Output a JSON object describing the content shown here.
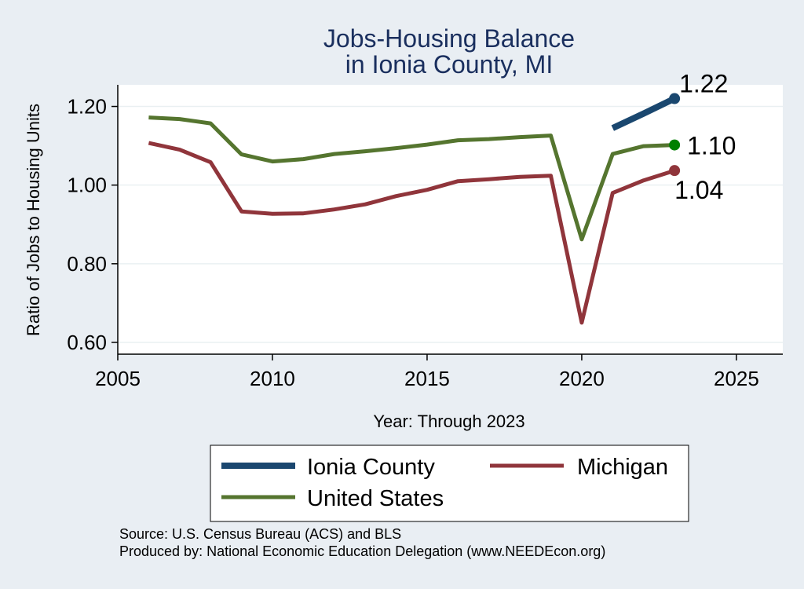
{
  "chart_data": {
    "type": "line",
    "title": "Jobs-Housing Balance",
    "subtitle": "in Ionia County, MI",
    "xlabel": "Year: Through 2023",
    "ylabel": "Ratio of Jobs to Housing Units",
    "xlim": [
      2005,
      2026.5
    ],
    "ylim": [
      0.57,
      1.255
    ],
    "x_ticks": [
      2005,
      2010,
      2015,
      2020,
      2025
    ],
    "y_ticks": [
      0.6,
      0.8,
      1.0,
      1.2
    ],
    "y_tick_labels": [
      "0.60",
      "0.80",
      "1.00",
      "1.20"
    ],
    "grid": true,
    "legend_position": "bottom",
    "series": [
      {
        "name": "Ionia County",
        "color": "#1a476f",
        "x": [
          2021,
          2022,
          2023
        ],
        "values": [
          1.145,
          1.182,
          1.22
        ],
        "end_label": "1.22"
      },
      {
        "name": "Michigan",
        "color": "#90353b",
        "x": [
          2006,
          2007,
          2008,
          2009,
          2010,
          2011,
          2012,
          2013,
          2014,
          2015,
          2016,
          2017,
          2018,
          2019,
          2020,
          2021,
          2022,
          2023
        ],
        "values": [
          1.107,
          1.09,
          1.058,
          0.933,
          0.927,
          0.928,
          0.938,
          0.951,
          0.972,
          0.988,
          1.01,
          1.015,
          1.021,
          1.024,
          0.65,
          0.98,
          1.012,
          1.037
        ],
        "end_label": "1.04"
      },
      {
        "name": "United States",
        "color": "#55752f",
        "x": [
          2006,
          2007,
          2008,
          2009,
          2010,
          2011,
          2012,
          2013,
          2014,
          2015,
          2016,
          2017,
          2018,
          2019,
          2020,
          2021,
          2022,
          2023
        ],
        "values": [
          1.172,
          1.168,
          1.157,
          1.078,
          1.06,
          1.066,
          1.079,
          1.086,
          1.094,
          1.103,
          1.114,
          1.117,
          1.122,
          1.126,
          0.862,
          1.079,
          1.099,
          1.102
        ],
        "end_label": "1.10"
      }
    ],
    "end_marker_colors": {
      "Ionia County": "#1a476f",
      "Michigan": "#90353b",
      "United States": "#008000"
    },
    "source_line": "Source: U.S. Census Bureau (ACS) and BLS",
    "produced_line": "Produced by: National Economic Education Delegation (www.NEEDEcon.org)"
  }
}
